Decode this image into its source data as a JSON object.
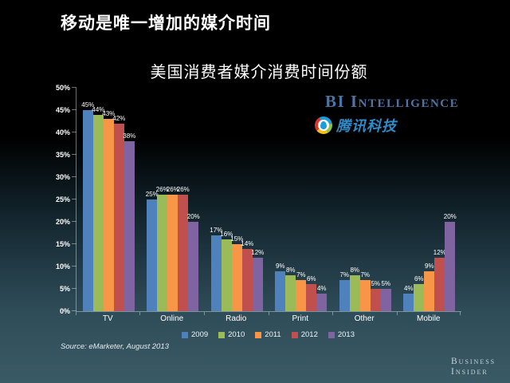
{
  "page": {
    "title": "移动是唯一增加的媒介时间",
    "source": "Source: eMarketer, August 2013"
  },
  "logos": {
    "bi_intelligence": "BI Intelligence",
    "tencent": "腾讯科技",
    "footer_line1": "Business",
    "footer_line2": "Insider"
  },
  "chart_data": {
    "type": "bar",
    "title": "美国消费者媒介消费时间份额",
    "categories": [
      "TV",
      "Online",
      "Radio",
      "Print",
      "Other",
      "Mobile"
    ],
    "series": [
      {
        "name": "2009",
        "color": "#4f81bd",
        "values": [
          45,
          25,
          17,
          9,
          7,
          4
        ]
      },
      {
        "name": "2010",
        "color": "#9bbb59",
        "values": [
          44,
          26,
          16,
          8,
          8,
          6
        ]
      },
      {
        "name": "2011",
        "color": "#f79646",
        "values": [
          43,
          26,
          15,
          7,
          7,
          9
        ]
      },
      {
        "name": "2012",
        "color": "#c0504d",
        "values": [
          42,
          26,
          14,
          6,
          5,
          12
        ]
      },
      {
        "name": "2013",
        "color": "#8064a2",
        "values": [
          38,
          20,
          12,
          4,
          5,
          20
        ]
      }
    ],
    "ylim": [
      0,
      50
    ],
    "yticks": [
      "0%",
      "5%",
      "10%",
      "15%",
      "20%",
      "25%",
      "30%",
      "35%",
      "40%",
      "45%",
      "50%"
    ],
    "data_label_suffix": "%",
    "grid": false,
    "legend_position": "bottom"
  }
}
